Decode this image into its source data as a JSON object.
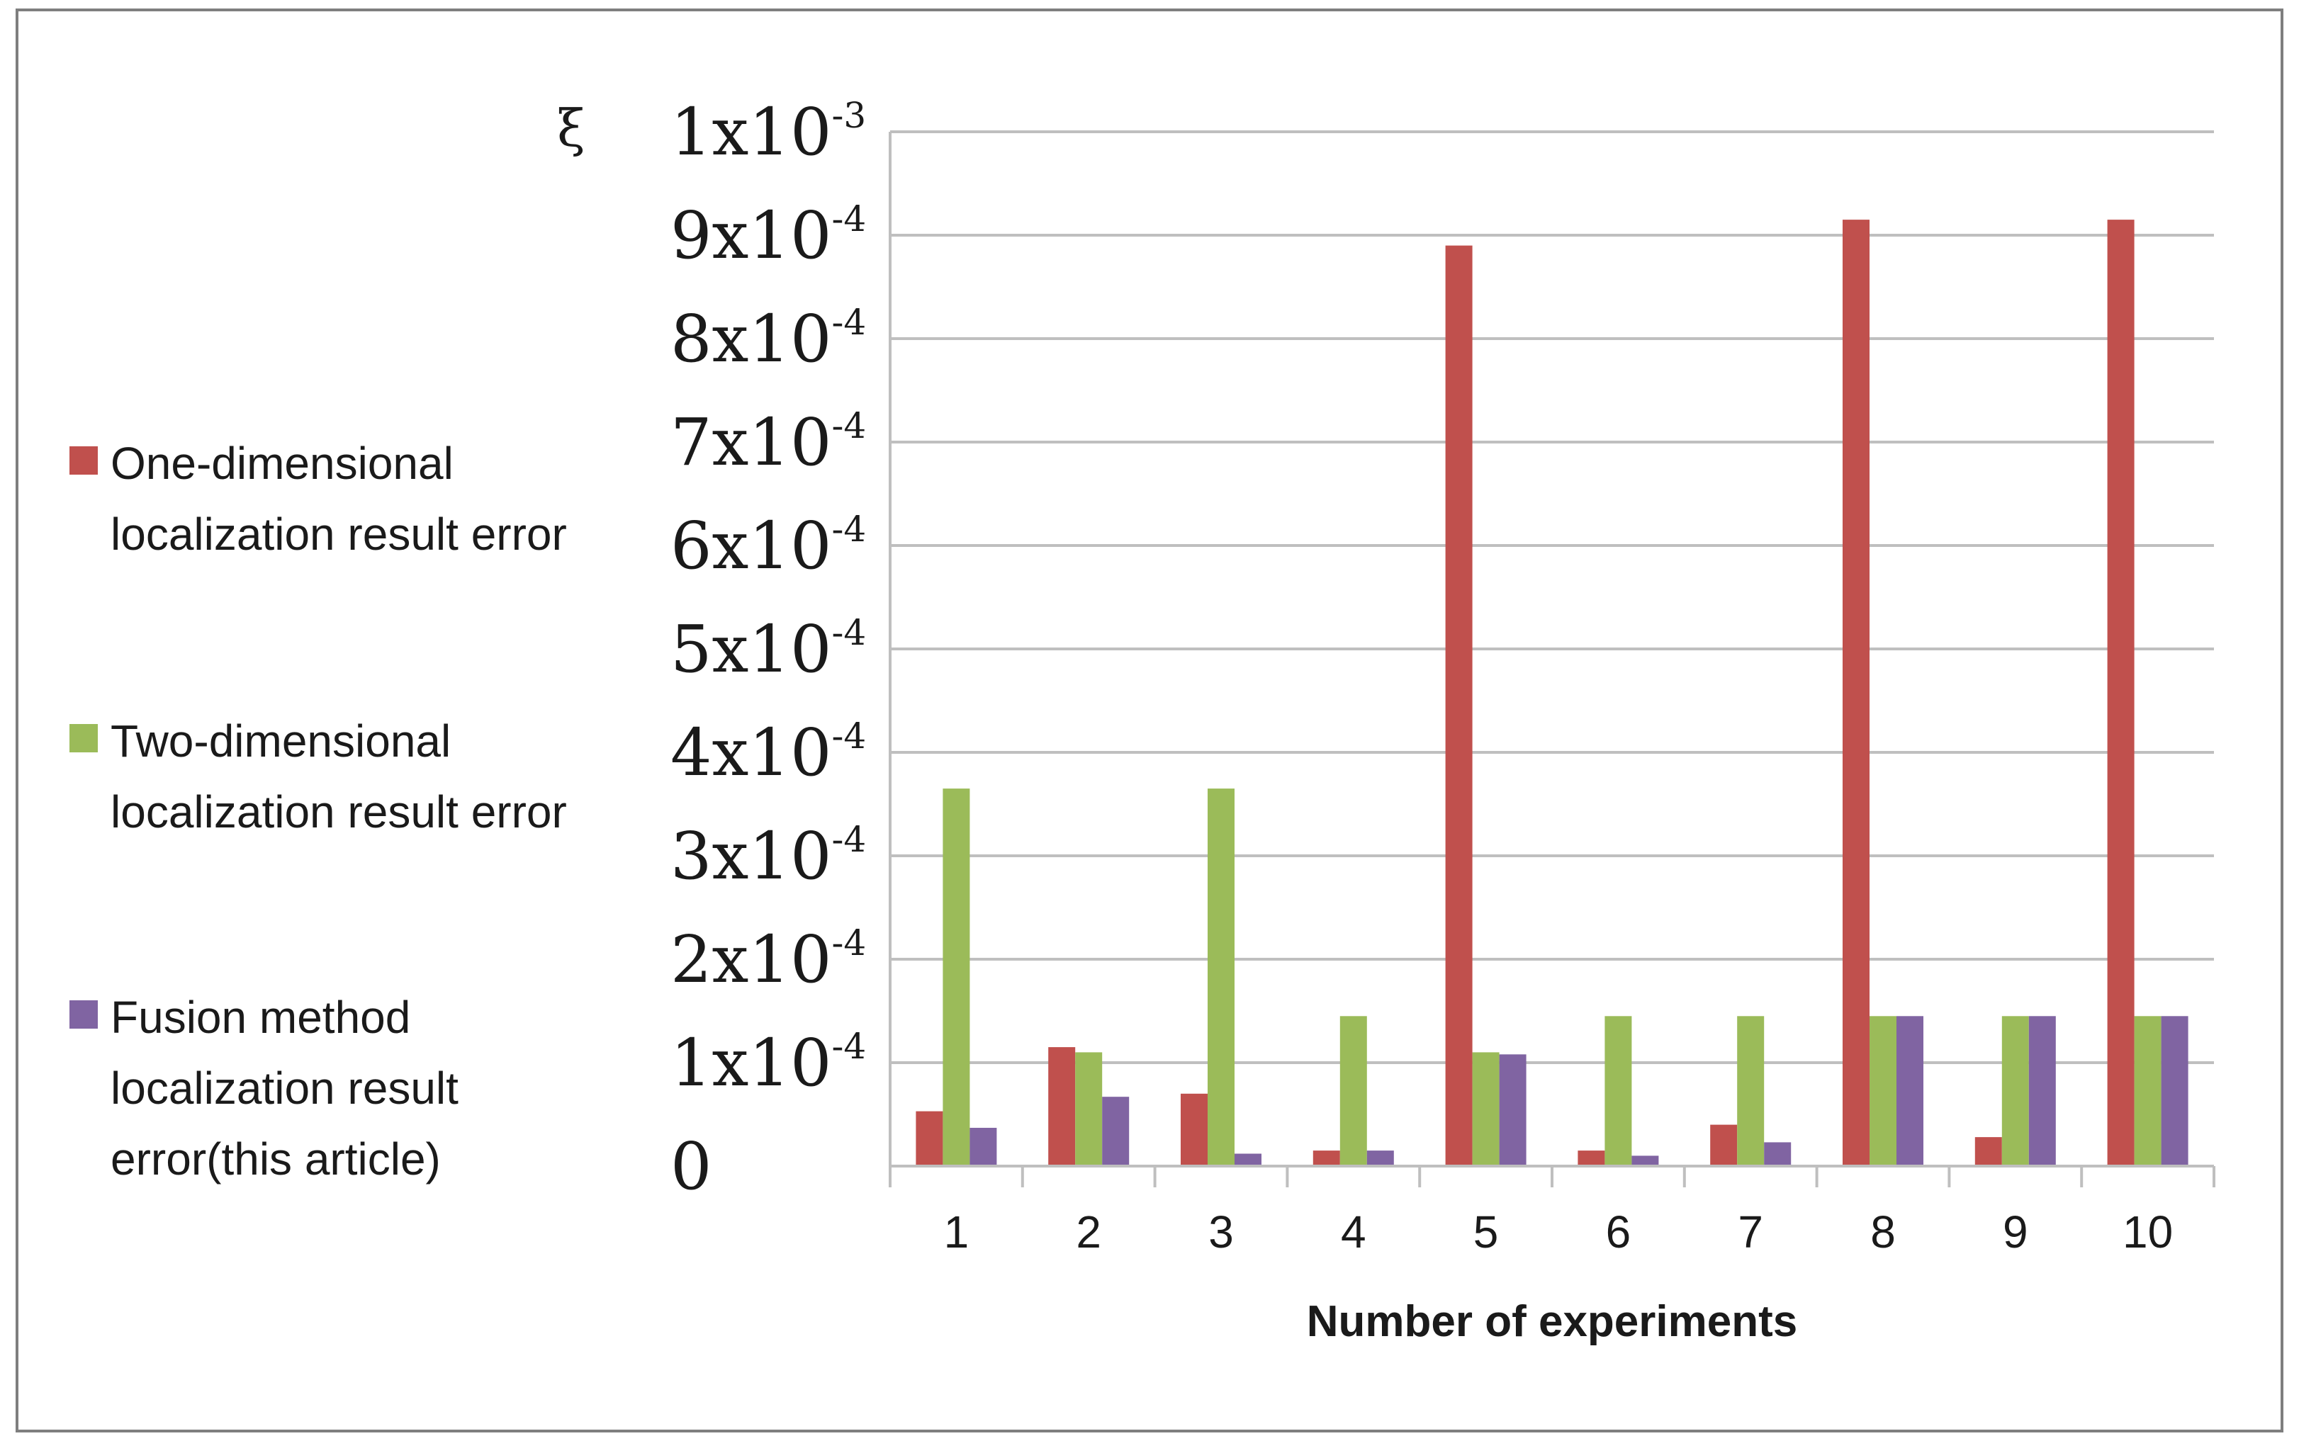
{
  "chart_data": {
    "type": "bar",
    "title": "",
    "ylabel": "ξ",
    "xlabel": "Number of experiments",
    "categories": [
      "1",
      "2",
      "3",
      "4",
      "5",
      "6",
      "7",
      "8",
      "9",
      "10"
    ],
    "ylim": [
      0,
      0.001
    ],
    "yticks": [
      {
        "value": 0,
        "base": "0",
        "exp": ""
      },
      {
        "value": 0.0001,
        "base": "1x10",
        "exp": "-4"
      },
      {
        "value": 0.0002,
        "base": "2x10",
        "exp": "-4"
      },
      {
        "value": 0.0003,
        "base": "3x10",
        "exp": "-4"
      },
      {
        "value": 0.0004,
        "base": "4x10",
        "exp": "-4"
      },
      {
        "value": 0.0005,
        "base": "5x10",
        "exp": "-4"
      },
      {
        "value": 0.0006,
        "base": "6x10",
        "exp": "-4"
      },
      {
        "value": 0.0007,
        "base": "7x10",
        "exp": "-4"
      },
      {
        "value": 0.0008,
        "base": "8x10",
        "exp": "-4"
      },
      {
        "value": 0.0009,
        "base": "9x10",
        "exp": "-4"
      },
      {
        "value": 0.001,
        "base": "1x10",
        "exp": "-3"
      }
    ],
    "grid": true,
    "legend_position": "left",
    "series": [
      {
        "name": "One-dimensional localization result error",
        "legend_lines": [
          "One-dimensional",
          "localization result error"
        ],
        "color": "#c0504d",
        "values": [
          5.3e-05,
          0.000115,
          7e-05,
          1.5e-05,
          0.00089,
          1.5e-05,
          4e-05,
          0.000915,
          2.8e-05,
          0.000915
        ]
      },
      {
        "name": "Two-dimensional localization result error",
        "legend_lines": [
          "Two-dimensional",
          "localization result error"
        ],
        "color": "#9bbb59",
        "values": [
          0.000365,
          0.00011,
          0.000365,
          0.000145,
          0.00011,
          0.000145,
          0.000145,
          0.000145,
          0.000145,
          0.000145
        ]
      },
      {
        "name": "Fusion method localization result error(this article)",
        "legend_lines": [
          "Fusion method",
          "localization result",
          "error(this article)"
        ],
        "color": "#8064a2",
        "values": [
          3.7e-05,
          6.7e-05,
          1.2e-05,
          1.5e-05,
          0.000108,
          1e-05,
          2.3e-05,
          0.000145,
          0.000145,
          0.000145
        ]
      }
    ]
  }
}
